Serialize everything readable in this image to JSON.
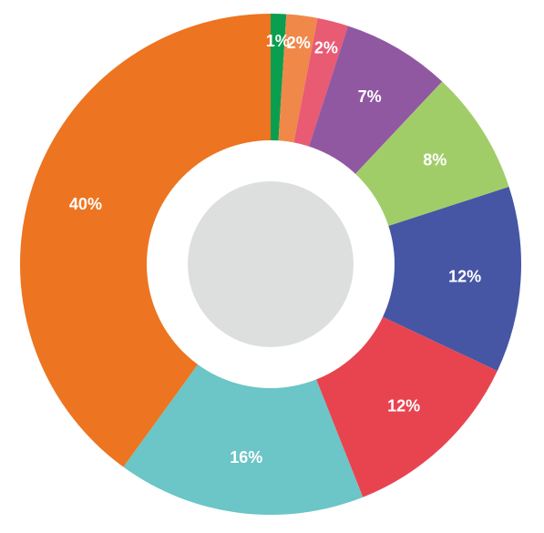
{
  "chart_data": {
    "type": "pie",
    "style": "donut",
    "title": "",
    "slices": [
      {
        "label": "1%",
        "value": 1,
        "color": "#0a9e4f"
      },
      {
        "label": "2%",
        "value": 2,
        "color": "#f0884a"
      },
      {
        "label": "2%",
        "value": 2,
        "color": "#e95a73"
      },
      {
        "label": "7%",
        "value": 7,
        "color": "#9158a2"
      },
      {
        "label": "8%",
        "value": 8,
        "color": "#a1cd69"
      },
      {
        "label": "12%",
        "value": 12,
        "color": "#4656a5"
      },
      {
        "label": "12%",
        "value": 12,
        "color": "#e84450"
      },
      {
        "label": "16%",
        "value": 16,
        "color": "#6cc5c6"
      },
      {
        "label": "40%",
        "value": 40,
        "color": "#ed7420"
      }
    ],
    "start": "top",
    "direction": "clockwise",
    "center_disc_color": "#dddfdf",
    "hole_color": "#ffffff"
  }
}
